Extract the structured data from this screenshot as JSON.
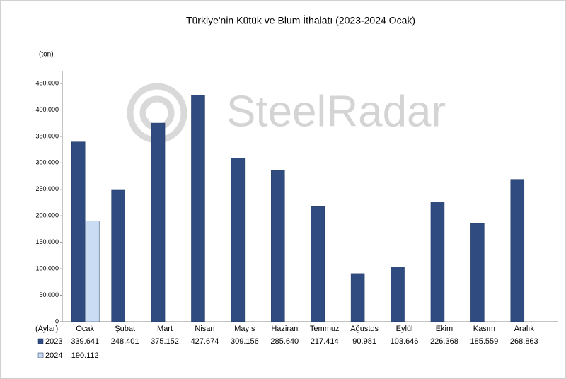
{
  "chart_data": {
    "type": "bar",
    "title": "Türkiye'nin Kütük ve Blum İthalatı (2023-2024 Ocak)",
    "y_label": "(ton)",
    "x_label": "(Aylar)",
    "watermark": "SteelRadar",
    "categories": [
      "Ocak",
      "Şubat",
      "Mart",
      "Nisan",
      "Mayıs",
      "Haziran",
      "Temmuz",
      "Ağustos",
      "Eylül",
      "Ekim",
      "Kasım",
      "Aralık"
    ],
    "series": [
      {
        "name": "2023",
        "color": "#2f4b80",
        "values": [
          339641,
          248401,
          375152,
          427674,
          309156,
          285640,
          217414,
          90981,
          103646,
          226368,
          185559,
          268863
        ],
        "value_labels": [
          "339.641",
          "248.401",
          "375.152",
          "427.674",
          "309.156",
          "285.640",
          "217.414",
          "90.981",
          "103.646",
          "226.368",
          "185.559",
          "268.863"
        ]
      },
      {
        "name": "2024",
        "color": "#c9dcf3",
        "values": [
          190112,
          null,
          null,
          null,
          null,
          null,
          null,
          null,
          null,
          null,
          null,
          null
        ],
        "value_labels": [
          "190.112",
          null,
          null,
          null,
          null,
          null,
          null,
          null,
          null,
          null,
          null,
          null
        ]
      }
    ],
    "ylim": [
      0,
      450000
    ],
    "yticks": [
      0,
      {
        "value": 50000,
        "label": "50.000"
      },
      {
        "value": 100000,
        "label": "100.000"
      },
      {
        "value": 150000,
        "label": "150.000"
      },
      {
        "value": 200000,
        "label": "200.000"
      },
      {
        "value": 250000,
        "label": "250.000"
      },
      {
        "value": 300000,
        "label": "300.000"
      },
      {
        "value": 350000,
        "label": "350.000"
      },
      {
        "value": 400000,
        "label": "400.000"
      },
      {
        "value": 450000,
        "label": "450.000"
      }
    ]
  }
}
